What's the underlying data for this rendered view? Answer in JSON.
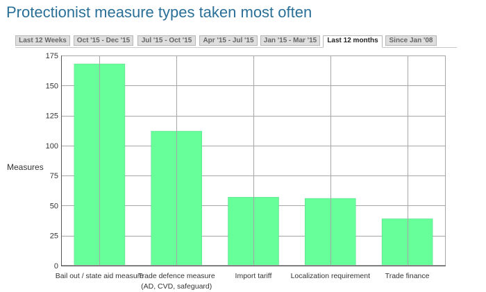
{
  "page": {
    "title": "Protectionist measure types taken most often"
  },
  "tabs": [
    {
      "label": "Last 12 Weeks",
      "active": false
    },
    {
      "label": "Oct '15 - Dec '15",
      "active": false
    },
    {
      "label": "Jul '15 - Oct '15",
      "active": false
    },
    {
      "label": "Apr '15 - Jul '15",
      "active": false
    },
    {
      "label": "Jan '15 - Mar '15",
      "active": false
    },
    {
      "label": "Last 12 months",
      "active": true
    },
    {
      "label": "Since Jan '08",
      "active": false
    }
  ],
  "colors": {
    "bar": "#66ff99",
    "bar_border": "#55d488",
    "grid": "#a6a6a6",
    "title": "#2a6f97"
  },
  "chart_data": {
    "type": "bar",
    "title": "",
    "xlabel": "",
    "ylabel": "Measures",
    "ylim": [
      0,
      175
    ],
    "yticks": [
      0,
      25,
      50,
      75,
      100,
      125,
      150,
      175
    ],
    "grid": true,
    "legend": "none",
    "categories": [
      "Bail out / state aid measure",
      "Trade defence measure (AD, CVD, safeguard)",
      "Import tariff",
      "Localization requirement",
      "Trade finance"
    ],
    "category_label_lines": [
      [
        "Bail out / state aid measure"
      ],
      [
        "Trade defence measure",
        "(AD, CVD, safeguard)"
      ],
      [
        "Import tariff"
      ],
      [
        "Localization requirement"
      ],
      [
        "Trade finance"
      ]
    ],
    "values": [
      168,
      112,
      57,
      56,
      39
    ]
  }
}
